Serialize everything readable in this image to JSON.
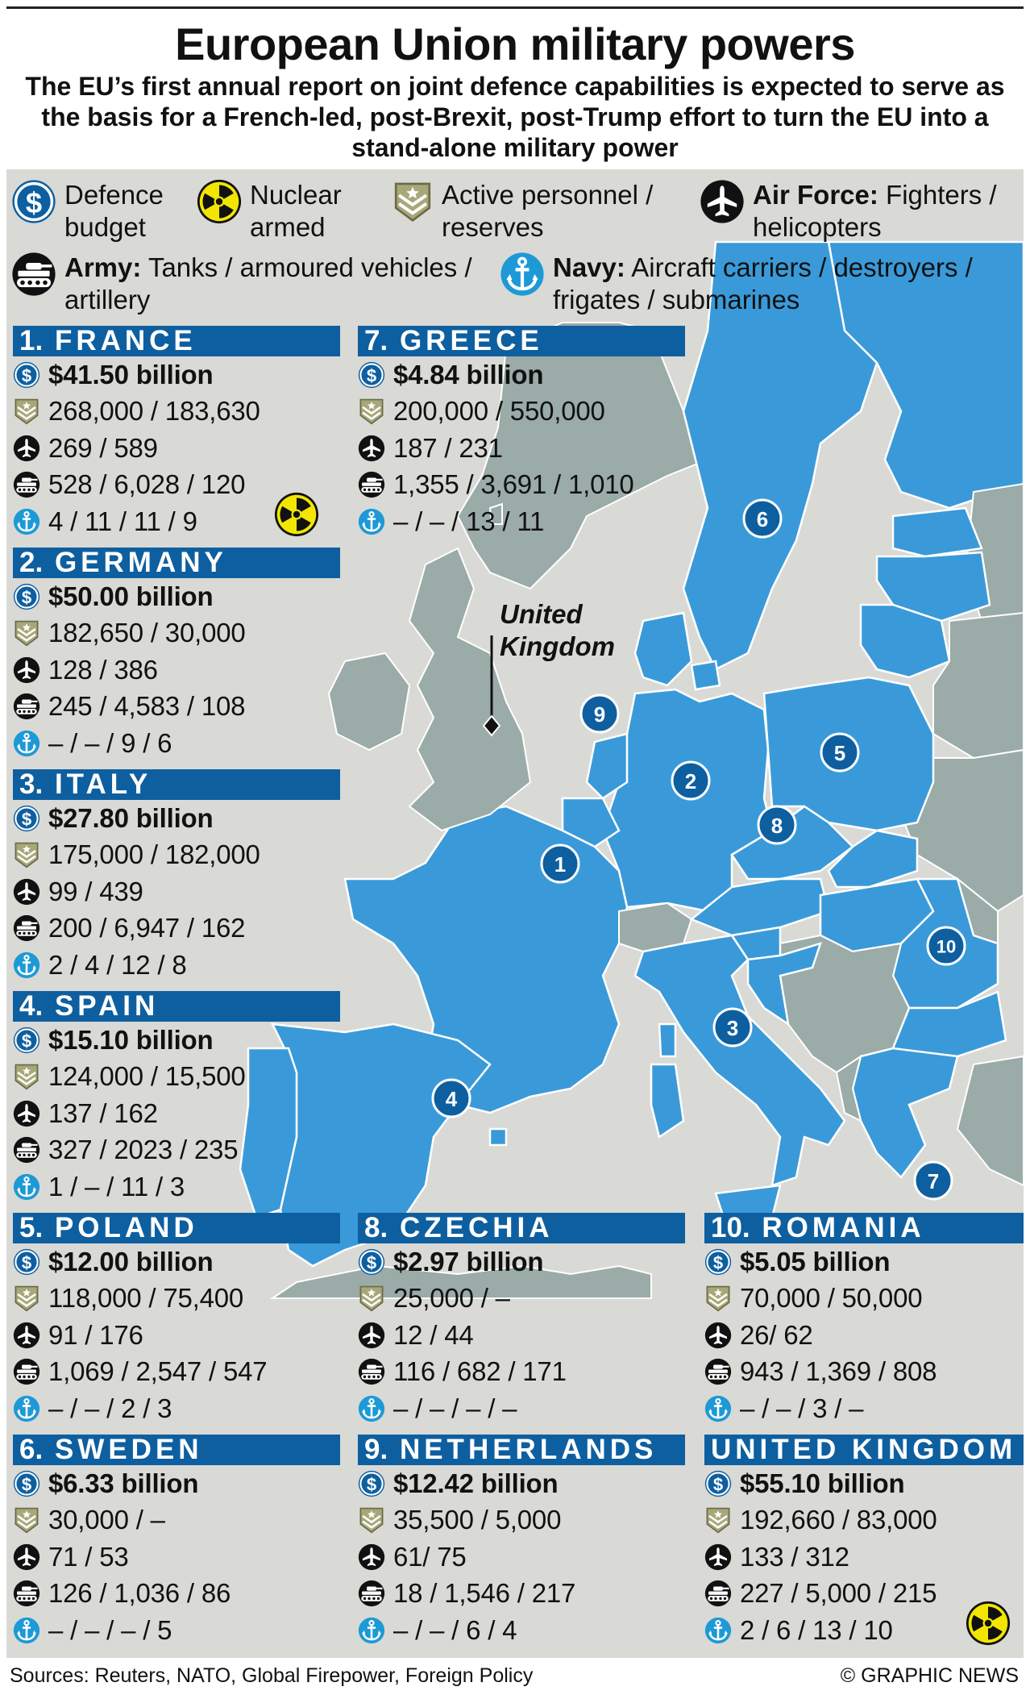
{
  "title": "European Union military powers",
  "subtitle": "The EU’s first annual report on joint defence capabilities is expected to serve as the basis for a French-led, post-Brexit, post-Trump effort to turn the EU into a stand-alone military power",
  "legend": {
    "budget": {
      "icon": "dollar-icon",
      "text": "Defence budget"
    },
    "nuclear": {
      "icon": "radiation-icon",
      "text": "Nuclear armed"
    },
    "personnel": {
      "icon": "chevron-shield-icon",
      "text": "Active personnel / reserves"
    },
    "airforce": {
      "icon": "jet-icon",
      "bold": "Air Force:",
      "text": "Fighters / helicopters"
    },
    "army": {
      "icon": "tank-icon",
      "bold": "Army:",
      "text": "Tanks / armoured vehicles / artillery"
    },
    "navy": {
      "icon": "anchor-icon",
      "bold": "Navy:",
      "text": "Aircraft carriers / destroyers / frigates / submarines"
    }
  },
  "map": {
    "uk_label": "United Kingdom",
    "markers": [
      "1",
      "2",
      "3",
      "4",
      "5",
      "6",
      "7",
      "8",
      "9",
      "10"
    ]
  },
  "countries": [
    {
      "num": "1.",
      "name": "FRANCE",
      "budget": "$41.50 billion",
      "personnel": "268,000 / 183,630",
      "air": "269 / 589",
      "army": "528 / 6,028 / 120",
      "navy": "4 / 11 / 11 / 9",
      "nuclear": true
    },
    {
      "num": "2.",
      "name": "GERMANY",
      "budget": "$50.00 billion",
      "personnel": "182,650 / 30,000",
      "air": "128 / 386",
      "army": "245 / 4,583 / 108",
      "navy": "– / – / 9 / 6",
      "nuclear": false
    },
    {
      "num": "3.",
      "name": "ITALY",
      "budget": "$27.80 billion",
      "personnel": "175,000 / 182,000",
      "air": "99 / 439",
      "army": "200 / 6,947 / 162",
      "navy": "2 / 4 / 12 / 8",
      "nuclear": false
    },
    {
      "num": "4.",
      "name": "SPAIN",
      "budget": "$15.10 billion",
      "personnel": "124,000 / 15,500",
      "air": "137 / 162",
      "army": "327 / 2023 / 235",
      "navy": "1 / – / 11 / 3",
      "nuclear": false
    },
    {
      "num": "5.",
      "name": "POLAND",
      "budget": "$12.00 billion",
      "personnel": "118,000 / 75,400",
      "air": "91 / 176",
      "army": "1,069 / 2,547 / 547",
      "navy": "– / – / 2 / 3",
      "nuclear": false
    },
    {
      "num": "6.",
      "name": "SWEDEN",
      "budget": "$6.33 billion",
      "personnel": "30,000 / –",
      "air": "71 / 53",
      "army": "126 / 1,036 / 86",
      "navy": "– / – / – / 5",
      "nuclear": false
    },
    {
      "num": "7.",
      "name": "GREECE",
      "budget": "$4.84 billion",
      "personnel": "200,000 / 550,000",
      "air": "187 / 231",
      "army": "1,355 / 3,691 / 1,010",
      "navy": "– / – / 13 / 11",
      "nuclear": false
    },
    {
      "num": "8.",
      "name": "CZECHIA",
      "budget": "$2.97 billion",
      "personnel": "25,000 / –",
      "air": "12 / 44",
      "army": "116 / 682 / 171",
      "navy": "– / – / – / –",
      "nuclear": false
    },
    {
      "num": "9.",
      "name": "NETHERLANDS",
      "budget": "$12.42 billion",
      "personnel": "35,500 / 5,000",
      "air": "61/ 75",
      "army": "18 / 1,546 / 217",
      "navy": "– / – / 6 / 4",
      "nuclear": false
    },
    {
      "num": "10.",
      "name": "ROMANIA",
      "budget": "$5.05 billion",
      "personnel": "70,000 / 50,000",
      "air": "26/ 62",
      "army": "943 / 1,369 / 808",
      "navy": "– / – / 3 / –",
      "nuclear": false
    },
    {
      "num": "",
      "name": "UNITED KINGDOM",
      "budget": "$55.10 billion",
      "personnel": "192,660 / 83,000",
      "air": "133 / 312",
      "army": "227 / 5,000 / 215",
      "navy": "2 / 6 / 13 / 10",
      "nuclear": true
    }
  ],
  "footer": {
    "sources": "Sources: Reuters, NATO, Global Firepower, Foreign Policy",
    "credit": "© GRAPHIC NEWS"
  },
  "colors": {
    "header_blue": "#0e5fa0",
    "eu_blue": "#3a9ad9",
    "non_eu_grey": "#9aaba8",
    "background": "#d9d9d6",
    "nuclear_yellow": "#f2e600",
    "chevron_khaki": "#9a9a6a"
  }
}
